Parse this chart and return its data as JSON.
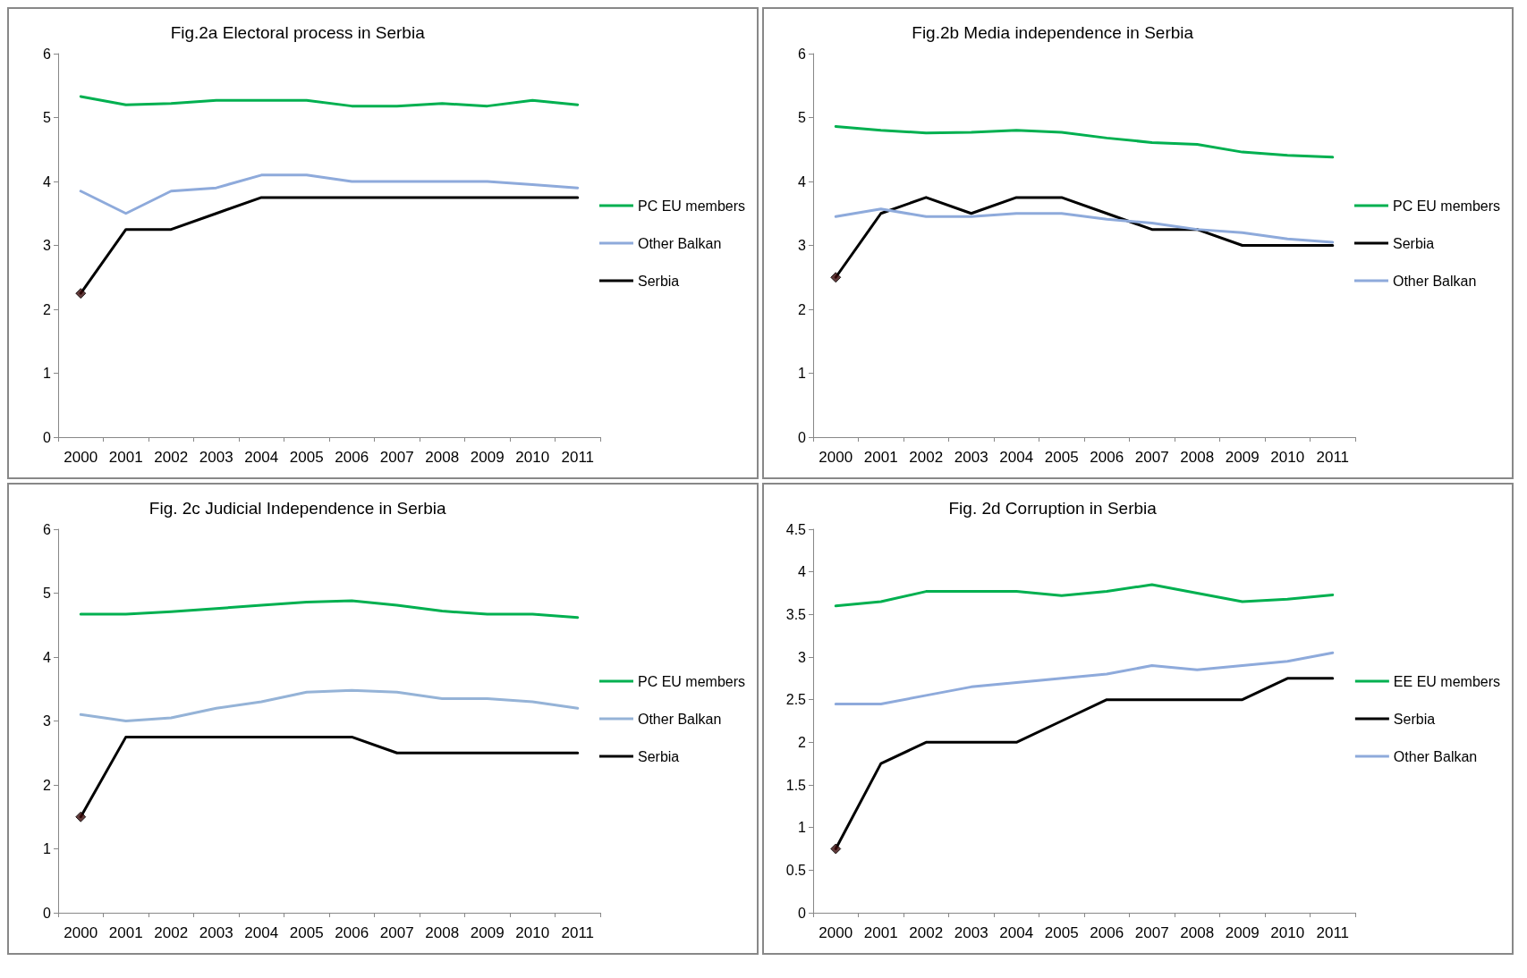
{
  "chart_data": [
    {
      "type": "line",
      "title": "Fig.2a Electoral process in Serbia",
      "categories": [
        "2000",
        "2001",
        "2002",
        "2003",
        "2004",
        "2005",
        "2006",
        "2007",
        "2008",
        "2009",
        "2010",
        "2011"
      ],
      "ylim": [
        0,
        6
      ],
      "yticks": [
        0,
        1,
        2,
        3,
        4,
        5,
        6
      ],
      "legend": "right",
      "grid": false,
      "series": [
        {
          "name": "PC EU members",
          "color": "#00b050",
          "values": [
            5.33,
            5.2,
            5.22,
            5.27,
            5.27,
            5.27,
            5.18,
            5.18,
            5.22,
            5.18,
            5.27,
            5.2
          ]
        },
        {
          "name": "Other Balkan",
          "color": "#8eaadb",
          "values": [
            3.85,
            3.5,
            3.85,
            3.9,
            4.1,
            4.1,
            4.0,
            4.0,
            4.0,
            4.0,
            3.95,
            3.9
          ]
        },
        {
          "name": "Serbia",
          "color": "#000000",
          "values": [
            2.25,
            3.25,
            3.25,
            3.5,
            3.75,
            3.75,
            3.75,
            3.75,
            3.75,
            3.75,
            3.75,
            3.75
          ]
        },
        {
          "type": "scatter",
          "marker": "diamond",
          "color": "#3b0a0a",
          "values": [
            2.25,
            null,
            null,
            null,
            null,
            null,
            null,
            null,
            null,
            null,
            null,
            null
          ]
        }
      ]
    },
    {
      "type": "line",
      "title": "Fig.2b Media independence in Serbia",
      "categories": [
        "2000",
        "2001",
        "2002",
        "2003",
        "2004",
        "2005",
        "2006",
        "2007",
        "2008",
        "2009",
        "2010",
        "2011"
      ],
      "ylim": [
        0,
        6
      ],
      "yticks": [
        0,
        1,
        2,
        3,
        4,
        5,
        6
      ],
      "legend": "right",
      "grid": false,
      "series": [
        {
          "name": "PC EU members",
          "color": "#00b050",
          "values": [
            4.86,
            4.8,
            4.76,
            4.77,
            4.8,
            4.77,
            4.68,
            4.61,
            4.58,
            4.46,
            4.41,
            4.38
          ]
        },
        {
          "name": "Serbia",
          "color": "#000000",
          "values": [
            2.5,
            3.5,
            3.75,
            3.5,
            3.75,
            3.75,
            3.5,
            3.25,
            3.25,
            3.0,
            3.0,
            3.0
          ]
        },
        {
          "name": "Other Balkan",
          "color": "#8eaadb",
          "values": [
            3.45,
            3.57,
            3.45,
            3.45,
            3.5,
            3.5,
            3.41,
            3.35,
            3.25,
            3.2,
            3.1,
            3.05
          ]
        },
        {
          "type": "scatter",
          "marker": "diamond",
          "color": "#3b0a0a",
          "values": [
            2.5,
            null,
            null,
            null,
            null,
            null,
            null,
            null,
            null,
            null,
            null,
            null
          ]
        }
      ]
    },
    {
      "type": "line",
      "title": "Fig. 2c Judicial Independence in Serbia",
      "categories": [
        "2000",
        "2001",
        "2002",
        "2003",
        "2004",
        "2005",
        "2006",
        "2007",
        "2008",
        "2009",
        "2010",
        "2011"
      ],
      "ylim": [
        0,
        6
      ],
      "yticks": [
        0,
        1,
        2,
        3,
        4,
        5,
        6
      ],
      "legend": "right",
      "grid": false,
      "series": [
        {
          "name": "PC EU members",
          "color": "#00b050",
          "values": [
            4.67,
            4.67,
            4.71,
            4.76,
            4.81,
            4.86,
            4.88,
            4.81,
            4.72,
            4.67,
            4.67,
            4.62
          ]
        },
        {
          "name": "Other Balkan",
          "color": "#95b3d7",
          "values": [
            3.1,
            3.0,
            3.05,
            3.2,
            3.3,
            3.45,
            3.48,
            3.45,
            3.35,
            3.35,
            3.3,
            3.2
          ]
        },
        {
          "name": "Serbia",
          "color": "#000000",
          "values": [
            1.5,
            2.75,
            2.75,
            2.75,
            2.75,
            2.75,
            2.75,
            2.5,
            2.5,
            2.5,
            2.5,
            2.5
          ]
        },
        {
          "type": "scatter",
          "marker": "diamond",
          "color": "#3b0a0a",
          "values": [
            1.5,
            null,
            null,
            null,
            null,
            null,
            null,
            null,
            null,
            null,
            null,
            null
          ]
        }
      ]
    },
    {
      "type": "line",
      "title": "Fig. 2d Corruption in Serbia",
      "categories": [
        "2000",
        "2001",
        "2002",
        "2003",
        "2004",
        "2005",
        "2006",
        "2007",
        "2008",
        "2009",
        "2010",
        "2011"
      ],
      "ylim": [
        0,
        4.5
      ],
      "yticks": [
        0,
        0.5,
        1,
        1.5,
        2,
        2.5,
        3,
        3.5,
        4,
        4.5
      ],
      "legend": "right",
      "grid": false,
      "series": [
        {
          "name": "EE EU members",
          "color": "#00b050",
          "values": [
            3.6,
            3.65,
            3.77,
            3.77,
            3.77,
            3.72,
            3.77,
            3.85,
            3.75,
            3.65,
            3.68,
            3.73
          ]
        },
        {
          "name": "Serbia",
          "color": "#000000",
          "values": [
            0.75,
            1.75,
            2.0,
            2.0,
            2.0,
            2.25,
            2.5,
            2.5,
            2.5,
            2.5,
            2.75,
            2.75
          ]
        },
        {
          "name": "Other Balkan",
          "color": "#8eaadb",
          "values": [
            2.45,
            2.45,
            2.55,
            2.65,
            2.7,
            2.75,
            2.8,
            2.9,
            2.85,
            2.9,
            2.95,
            3.05
          ]
        },
        {
          "type": "scatter",
          "marker": "diamond",
          "color": "#3b0a0a",
          "values": [
            0.75,
            null,
            null,
            null,
            null,
            null,
            null,
            null,
            null,
            null,
            null,
            null
          ]
        }
      ]
    }
  ]
}
